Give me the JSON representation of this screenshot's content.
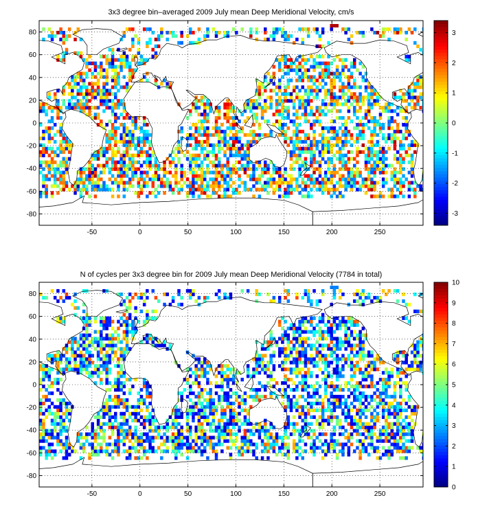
{
  "chart_data": [
    {
      "type": "heatmap",
      "title": "3x3 degree bin–averaged 2009 July mean Deep Meridional Velocity, cm/s",
      "xlim": [
        -105,
        295
      ],
      "ylim": [
        -90,
        90
      ],
      "xticks": [
        -50,
        0,
        50,
        100,
        150,
        200,
        250
      ],
      "yticks": [
        -80,
        -60,
        -40,
        -20,
        0,
        20,
        40,
        60,
        80
      ],
      "colorbar": {
        "ticks": [
          -3,
          -2,
          -1,
          0,
          1,
          2,
          3
        ],
        "range": [
          -3.4,
          3.4
        ],
        "colormap": "jet"
      },
      "grid": true,
      "bin_size_deg": 3
    },
    {
      "type": "heatmap",
      "title": "N of cycles per 3x3 degree bin for 2009 July mean Deep Meridional Velocity (7784 in total)",
      "xlim": [
        -105,
        295
      ],
      "ylim": [
        -90,
        90
      ],
      "xticks": [
        -50,
        0,
        50,
        100,
        150,
        200,
        250
      ],
      "yticks": [
        -80,
        -60,
        -40,
        -20,
        0,
        20,
        40,
        60,
        80
      ],
      "colorbar": {
        "ticks": [
          0,
          1,
          2,
          3,
          4,
          5,
          6,
          7,
          8,
          9,
          10
        ],
        "range": [
          0,
          10
        ],
        "colormap": "jet"
      },
      "grid": true,
      "bin_size_deg": 3
    }
  ]
}
